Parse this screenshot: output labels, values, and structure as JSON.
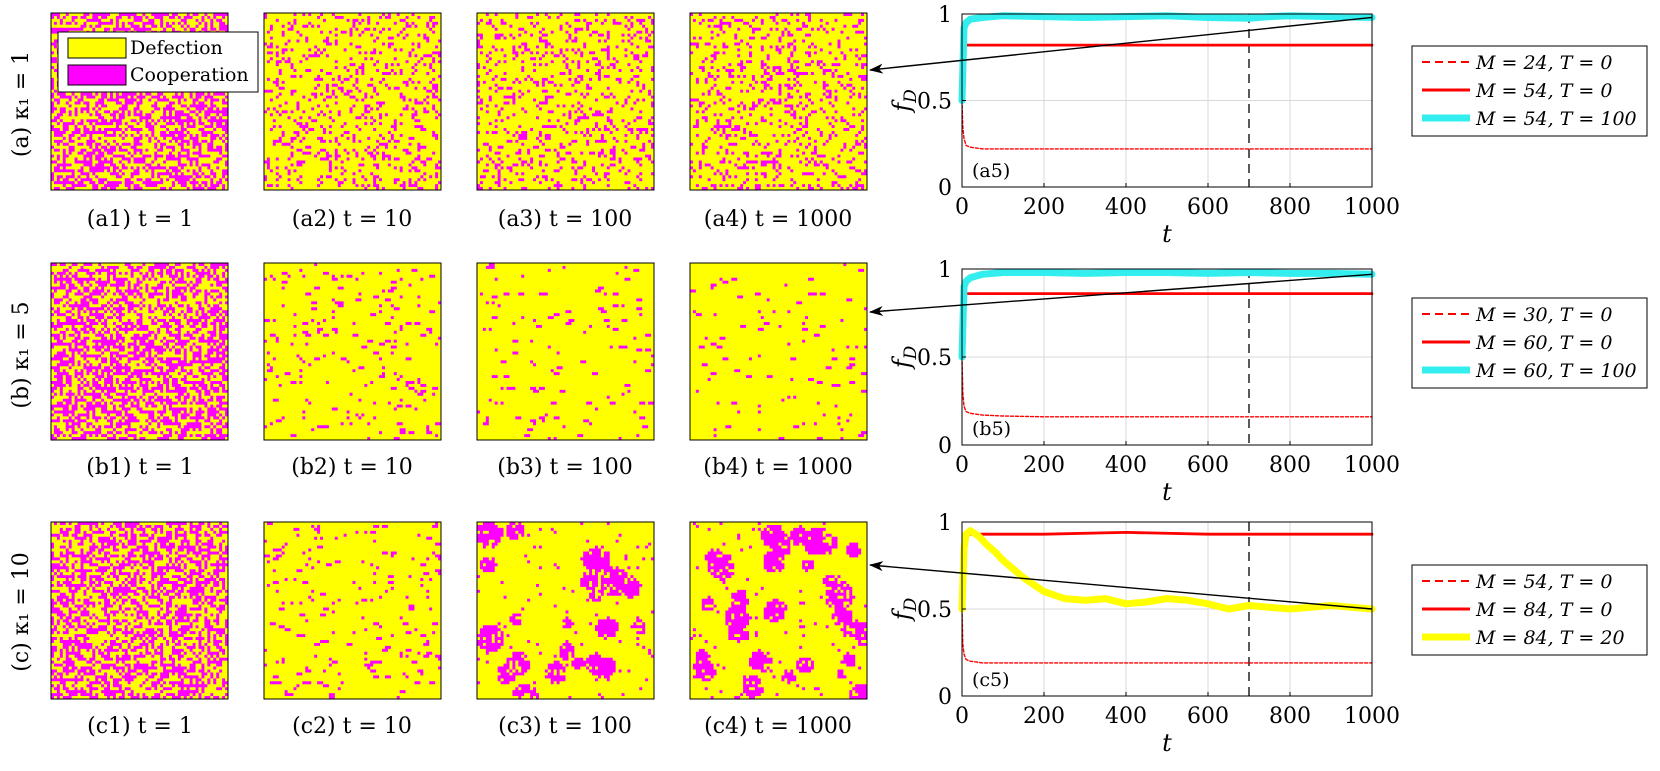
{
  "legend_lattice": {
    "defection": "Defection",
    "cooperation": "Cooperation"
  },
  "colors": {
    "defection": "#ffff00",
    "cooperation": "#ff00ff",
    "red": "#ff0000",
    "cyan": "#33eeee",
    "yellow": "#ffff00",
    "grid": "#d9d9d9"
  },
  "rows": [
    {
      "row_label": "(a) κ₁ = 1",
      "snapshots": [
        {
          "label": "(a1) t = 1",
          "cooperation_fraction": 0.5,
          "pattern": "random"
        },
        {
          "label": "(a2) t = 10",
          "cooperation_fraction": 0.2,
          "pattern": "random"
        },
        {
          "label": "(a3) t = 100",
          "cooperation_fraction": 0.2,
          "pattern": "random"
        },
        {
          "label": "(a4) t = 1000",
          "cooperation_fraction": 0.2,
          "pattern": "random"
        }
      ]
    },
    {
      "row_label": "(b) κ₁ = 5",
      "snapshots": [
        {
          "label": "(b1) t = 1",
          "cooperation_fraction": 0.5,
          "pattern": "random"
        },
        {
          "label": "(b2) t = 10",
          "cooperation_fraction": 0.05,
          "pattern": "sparse"
        },
        {
          "label": "(b3) t = 100",
          "cooperation_fraction": 0.03,
          "pattern": "sparse"
        },
        {
          "label": "(b4) t = 1000",
          "cooperation_fraction": 0.03,
          "pattern": "sparse"
        }
      ]
    },
    {
      "row_label": "(c) κ₁ = 10",
      "snapshots": [
        {
          "label": "(c1) t = 1",
          "cooperation_fraction": 0.5,
          "pattern": "random"
        },
        {
          "label": "(c2) t = 10",
          "cooperation_fraction": 0.05,
          "pattern": "sparse"
        },
        {
          "label": "(c3) t = 100",
          "cooperation_fraction": 0.25,
          "pattern": "clustered"
        },
        {
          "label": "(c4) t = 1000",
          "cooperation_fraction": 0.5,
          "pattern": "clustered"
        }
      ]
    }
  ],
  "chart_data": [
    {
      "type": "line",
      "panel_label": "(a5)",
      "xlabel": "t",
      "ylabel": "f_D",
      "xlim": [
        0,
        1000
      ],
      "ylim": [
        0,
        1
      ],
      "xticks": [
        "0",
        "200",
        "400",
        "600",
        "800",
        "1000"
      ],
      "yticks": [
        "0",
        "0.5",
        "1"
      ],
      "vline": 700,
      "arrow_from_t": 1000,
      "series": [
        {
          "name": "M = 24, T = 0",
          "style": "dashed",
          "color": "#ff0000",
          "x": [
            0,
            2,
            5,
            10,
            20,
            50,
            200,
            400,
            600,
            700,
            800,
            1000
          ],
          "y": [
            0.5,
            0.35,
            0.28,
            0.24,
            0.23,
            0.22,
            0.22,
            0.22,
            0.22,
            0.22,
            0.22,
            0.22
          ]
        },
        {
          "name": "M = 54, T = 0",
          "style": "solid",
          "color": "#ff0000",
          "x": [
            0,
            2,
            5,
            10,
            20,
            100,
            200,
            400,
            600,
            800,
            1000
          ],
          "y": [
            0.5,
            0.7,
            0.8,
            0.82,
            0.82,
            0.82,
            0.82,
            0.82,
            0.82,
            0.82,
            0.82
          ]
        },
        {
          "name": "M = 54, T = 100",
          "style": "thick",
          "color": "#33eeee",
          "x": [
            0,
            5,
            10,
            20,
            50,
            100,
            200,
            300,
            400,
            500,
            600,
            700,
            750,
            800,
            900,
            1000
          ],
          "y": [
            0.5,
            0.92,
            0.95,
            0.97,
            0.98,
            0.99,
            0.985,
            0.98,
            0.985,
            0.99,
            0.98,
            0.975,
            0.985,
            0.99,
            0.985,
            0.98
          ]
        }
      ]
    },
    {
      "type": "line",
      "panel_label": "(b5)",
      "xlabel": "t",
      "ylabel": "f_D",
      "xlim": [
        0,
        1000
      ],
      "ylim": [
        0,
        1
      ],
      "xticks": [
        "0",
        "200",
        "400",
        "600",
        "800",
        "1000"
      ],
      "yticks": [
        "0",
        "0.5",
        "1"
      ],
      "vline": 700,
      "arrow_from_t": 1000,
      "series": [
        {
          "name": "M = 30, T = 0",
          "style": "dashed",
          "color": "#ff0000",
          "x": [
            0,
            2,
            5,
            10,
            20,
            50,
            100,
            200,
            400,
            600,
            700,
            800,
            1000
          ],
          "y": [
            0.5,
            0.3,
            0.22,
            0.19,
            0.18,
            0.17,
            0.165,
            0.16,
            0.16,
            0.16,
            0.16,
            0.16,
            0.16
          ]
        },
        {
          "name": "M = 60, T = 0",
          "style": "solid",
          "color": "#ff0000",
          "x": [
            0,
            2,
            5,
            10,
            20,
            100,
            200,
            400,
            600,
            800,
            1000
          ],
          "y": [
            0.5,
            0.75,
            0.84,
            0.86,
            0.86,
            0.86,
            0.86,
            0.86,
            0.86,
            0.86,
            0.86
          ]
        },
        {
          "name": "M = 60, T = 100",
          "style": "thick",
          "color": "#33eeee",
          "x": [
            0,
            5,
            10,
            20,
            50,
            100,
            200,
            300,
            400,
            500,
            600,
            700,
            800,
            900,
            1000
          ],
          "y": [
            0.5,
            0.9,
            0.93,
            0.95,
            0.97,
            0.98,
            0.98,
            0.975,
            0.98,
            0.98,
            0.975,
            0.98,
            0.975,
            0.975,
            0.97
          ]
        }
      ]
    },
    {
      "type": "line",
      "panel_label": "(c5)",
      "xlabel": "t",
      "ylabel": "f_D",
      "xlim": [
        0,
        1000
      ],
      "ylim": [
        0,
        1
      ],
      "xticks": [
        "0",
        "200",
        "400",
        "600",
        "800",
        "1000"
      ],
      "yticks": [
        "0",
        "0.5",
        "1"
      ],
      "vline": 700,
      "arrow_from_t": 1000,
      "series": [
        {
          "name": "M = 54, T = 0",
          "style": "dashed",
          "color": "#ff0000",
          "x": [
            0,
            2,
            5,
            10,
            20,
            50,
            100,
            200,
            400,
            600,
            700,
            800,
            1000
          ],
          "y": [
            0.5,
            0.3,
            0.24,
            0.21,
            0.2,
            0.19,
            0.19,
            0.19,
            0.19,
            0.19,
            0.19,
            0.19,
            0.19
          ]
        },
        {
          "name": "M = 84, T = 0",
          "style": "solid",
          "color": "#ff0000",
          "x": [
            0,
            2,
            5,
            10,
            20,
            100,
            200,
            400,
            600,
            800,
            1000
          ],
          "y": [
            0.5,
            0.8,
            0.9,
            0.93,
            0.93,
            0.93,
            0.93,
            0.94,
            0.93,
            0.93,
            0.93
          ]
        },
        {
          "name": "M = 84, T = 20",
          "style": "thick",
          "color": "#ffff00",
          "x": [
            0,
            5,
            10,
            20,
            40,
            60,
            80,
            100,
            150,
            200,
            250,
            300,
            350,
            400,
            450,
            500,
            550,
            600,
            650,
            700,
            750,
            800,
            850,
            900,
            950,
            1000
          ],
          "y": [
            0.5,
            0.85,
            0.93,
            0.95,
            0.92,
            0.87,
            0.83,
            0.78,
            0.68,
            0.6,
            0.56,
            0.55,
            0.56,
            0.53,
            0.54,
            0.56,
            0.55,
            0.53,
            0.5,
            0.52,
            0.51,
            0.5,
            0.51,
            0.52,
            0.51,
            0.5
          ]
        }
      ]
    }
  ]
}
